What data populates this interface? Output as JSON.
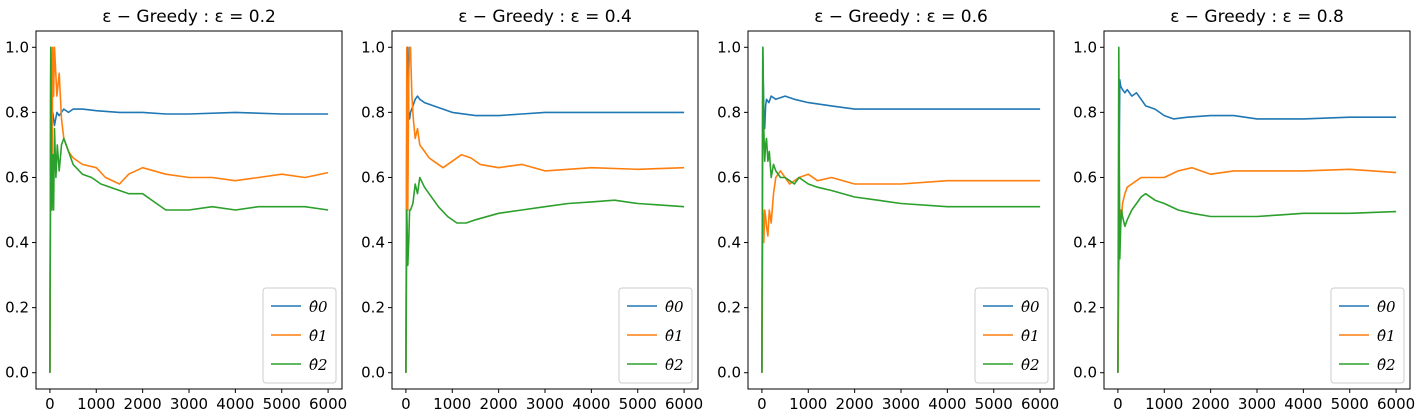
{
  "chart_data": [
    {
      "type": "line",
      "title": "ε − Greedy :  ε = 0.2",
      "xlabel": "",
      "ylabel": "",
      "xlim": [
        0,
        6000
      ],
      "ylim": [
        0.0,
        1.0
      ],
      "xticks": [
        "0",
        "1000",
        "2000",
        "3000",
        "4000",
        "5000",
        "6000"
      ],
      "yticks": [
        "0.0",
        "0.2",
        "0.4",
        "0.6",
        "0.8",
        "1.0"
      ],
      "legend_position": "lower-right",
      "series": [
        {
          "name": "θ̂0",
          "color": "#1f77b4",
          "x": [
            0,
            20,
            40,
            60,
            80,
            100,
            150,
            200,
            300,
            400,
            500,
            700,
            1000,
            1500,
            2000,
            2500,
            3000,
            4000,
            5000,
            6000
          ],
          "y": [
            0,
            1.0,
            0.75,
            0.8,
            0.78,
            0.76,
            0.8,
            0.79,
            0.81,
            0.8,
            0.81,
            0.81,
            0.805,
            0.8,
            0.8,
            0.795,
            0.795,
            0.8,
            0.795,
            0.795
          ]
        },
        {
          "name": "θ̂1",
          "color": "#ff7f0e",
          "x": [
            0,
            20,
            40,
            60,
            80,
            100,
            150,
            200,
            250,
            300,
            400,
            500,
            700,
            1000,
            1200,
            1500,
            1700,
            2000,
            2500,
            3000,
            3500,
            4000,
            4500,
            5000,
            5500,
            6000
          ],
          "y": [
            0,
            1.0,
            0.5,
            1.0,
            0.85,
            1.0,
            0.85,
            0.92,
            0.78,
            0.72,
            0.68,
            0.66,
            0.64,
            0.63,
            0.6,
            0.58,
            0.61,
            0.63,
            0.61,
            0.6,
            0.6,
            0.59,
            0.6,
            0.61,
            0.6,
            0.615
          ]
        },
        {
          "name": "θ̂2",
          "color": "#2ca02c",
          "x": [
            0,
            20,
            40,
            60,
            80,
            100,
            130,
            160,
            200,
            250,
            300,
            400,
            500,
            700,
            900,
            1100,
            1300,
            1500,
            1700,
            2000,
            2300,
            2500,
            3000,
            3500,
            4000,
            4500,
            5000,
            5500,
            6000
          ],
          "y": [
            0,
            1.0,
            0.5,
            0.67,
            0.5,
            0.75,
            0.6,
            0.7,
            0.62,
            0.7,
            0.72,
            0.68,
            0.64,
            0.61,
            0.6,
            0.58,
            0.57,
            0.56,
            0.55,
            0.55,
            0.52,
            0.5,
            0.5,
            0.51,
            0.5,
            0.51,
            0.51,
            0.51,
            0.5
          ]
        }
      ]
    },
    {
      "type": "line",
      "title": "ε − Greedy :  ε = 0.4",
      "xlabel": "",
      "ylabel": "",
      "xlim": [
        0,
        6000
      ],
      "ylim": [
        0.0,
        1.0
      ],
      "xticks": [
        "0",
        "1000",
        "2000",
        "3000",
        "4000",
        "5000",
        "6000"
      ],
      "yticks": [
        "0.0",
        "0.2",
        "0.4",
        "0.6",
        "0.8",
        "1.0"
      ],
      "legend_position": "lower-right",
      "series": [
        {
          "name": "θ̂0",
          "color": "#1f77b4",
          "x": [
            0,
            20,
            40,
            60,
            80,
            100,
            150,
            200,
            250,
            300,
            400,
            600,
            800,
            1000,
            1500,
            2000,
            2500,
            3000,
            3500,
            4000,
            5000,
            6000
          ],
          "y": [
            0,
            0.75,
            1.0,
            0.8,
            0.78,
            0.8,
            0.82,
            0.84,
            0.85,
            0.84,
            0.83,
            0.82,
            0.81,
            0.8,
            0.79,
            0.79,
            0.795,
            0.8,
            0.8,
            0.8,
            0.8,
            0.8
          ]
        },
        {
          "name": "θ̂1",
          "color": "#ff7f0e",
          "x": [
            0,
            20,
            40,
            60,
            80,
            100,
            130,
            160,
            200,
            250,
            300,
            400,
            500,
            600,
            800,
            1000,
            1200,
            1400,
            1600,
            2000,
            2500,
            3000,
            4000,
            5000,
            6000
          ],
          "y": [
            0,
            1.0,
            0.5,
            0.9,
            1.0,
            1.0,
            0.85,
            0.78,
            0.72,
            0.75,
            0.7,
            0.68,
            0.66,
            0.65,
            0.63,
            0.65,
            0.67,
            0.66,
            0.64,
            0.63,
            0.64,
            0.62,
            0.63,
            0.625,
            0.63
          ]
        },
        {
          "name": "θ̂2",
          "color": "#2ca02c",
          "x": [
            0,
            20,
            40,
            60,
            80,
            100,
            150,
            200,
            250,
            300,
            400,
            500,
            700,
            900,
            1100,
            1300,
            1500,
            2000,
            2500,
            3000,
            3500,
            4000,
            4500,
            5000,
            5500,
            6000
          ],
          "y": [
            0,
            0.5,
            0.33,
            0.4,
            0.5,
            0.5,
            0.52,
            0.58,
            0.55,
            0.6,
            0.57,
            0.55,
            0.51,
            0.48,
            0.46,
            0.46,
            0.47,
            0.49,
            0.5,
            0.51,
            0.52,
            0.525,
            0.53,
            0.52,
            0.515,
            0.51
          ]
        }
      ]
    },
    {
      "type": "line",
      "title": "ε − Greedy :  ε = 0.6",
      "xlabel": "",
      "ylabel": "",
      "xlim": [
        0,
        6000
      ],
      "ylim": [
        0.0,
        1.0
      ],
      "xticks": [
        "0",
        "1000",
        "2000",
        "3000",
        "4000",
        "5000",
        "6000"
      ],
      "yticks": [
        "0.0",
        "0.2",
        "0.4",
        "0.6",
        "0.8",
        "1.0"
      ],
      "legend_position": "lower-right",
      "series": [
        {
          "name": "θ̂0",
          "color": "#1f77b4",
          "x": [
            0,
            20,
            40,
            60,
            80,
            100,
            150,
            200,
            300,
            500,
            700,
            1000,
            1500,
            2000,
            2500,
            3000,
            4000,
            5000,
            6000
          ],
          "y": [
            0,
            1.0,
            0.8,
            0.75,
            0.82,
            0.84,
            0.83,
            0.85,
            0.84,
            0.85,
            0.84,
            0.83,
            0.82,
            0.81,
            0.81,
            0.81,
            0.81,
            0.81,
            0.81
          ]
        },
        {
          "name": "θ̂1",
          "color": "#ff7f0e",
          "x": [
            0,
            20,
            40,
            60,
            80,
            100,
            130,
            160,
            200,
            250,
            300,
            400,
            500,
            600,
            800,
            1000,
            1200,
            1500,
            2000,
            2500,
            3000,
            4000,
            5000,
            6000
          ],
          "y": [
            0,
            0.5,
            0.4,
            0.5,
            0.48,
            0.45,
            0.42,
            0.5,
            0.46,
            0.55,
            0.6,
            0.62,
            0.6,
            0.58,
            0.6,
            0.61,
            0.59,
            0.6,
            0.58,
            0.58,
            0.58,
            0.59,
            0.59,
            0.59
          ]
        },
        {
          "name": "θ̂2",
          "color": "#2ca02c",
          "x": [
            0,
            20,
            40,
            60,
            80,
            100,
            130,
            160,
            200,
            250,
            300,
            400,
            500,
            600,
            700,
            800,
            1000,
            1200,
            1500,
            2000,
            2500,
            3000,
            4000,
            5000,
            6000
          ],
          "y": [
            0,
            1.0,
            0.75,
            0.65,
            0.7,
            0.72,
            0.65,
            0.68,
            0.6,
            0.64,
            0.62,
            0.6,
            0.6,
            0.59,
            0.58,
            0.6,
            0.58,
            0.57,
            0.56,
            0.54,
            0.53,
            0.52,
            0.51,
            0.51,
            0.51
          ]
        }
      ]
    },
    {
      "type": "line",
      "title": "ε − Greedy :  ε = 0.8",
      "xlabel": "",
      "ylabel": "",
      "xlim": [
        0,
        6000
      ],
      "ylim": [
        0.0,
        1.0
      ],
      "xticks": [
        "0",
        "1000",
        "2000",
        "3000",
        "4000",
        "5000",
        "6000"
      ],
      "yticks": [
        "0.0",
        "0.2",
        "0.4",
        "0.6",
        "0.8",
        "1.0"
      ],
      "legend_position": "lower-right",
      "series": [
        {
          "name": "θ̂0",
          "color": "#1f77b4",
          "x": [
            0,
            20,
            40,
            60,
            100,
            150,
            200,
            300,
            400,
            500,
            600,
            800,
            1000,
            1200,
            1500,
            2000,
            2500,
            3000,
            4000,
            5000,
            6000
          ],
          "y": [
            0,
            0.5,
            0.9,
            0.88,
            0.87,
            0.86,
            0.87,
            0.85,
            0.86,
            0.84,
            0.82,
            0.81,
            0.79,
            0.78,
            0.785,
            0.79,
            0.79,
            0.78,
            0.78,
            0.785,
            0.785
          ]
        },
        {
          "name": "θ̂1",
          "color": "#ff7f0e",
          "x": [
            0,
            20,
            40,
            60,
            80,
            100,
            150,
            200,
            300,
            400,
            500,
            700,
            1000,
            1300,
            1600,
            2000,
            2500,
            3000,
            4000,
            5000,
            6000
          ],
          "y": [
            0,
            0.3,
            0.45,
            0.5,
            0.48,
            0.52,
            0.55,
            0.57,
            0.58,
            0.59,
            0.6,
            0.6,
            0.6,
            0.62,
            0.63,
            0.61,
            0.62,
            0.62,
            0.62,
            0.625,
            0.615
          ]
        },
        {
          "name": "θ̂2",
          "color": "#2ca02c",
          "x": [
            0,
            20,
            40,
            60,
            80,
            100,
            150,
            200,
            300,
            400,
            500,
            600,
            800,
            1000,
            1300,
            1600,
            2000,
            2500,
            3000,
            3500,
            4000,
            5000,
            6000
          ],
          "y": [
            0,
            1.0,
            0.35,
            0.45,
            0.5,
            0.48,
            0.45,
            0.47,
            0.5,
            0.52,
            0.54,
            0.55,
            0.53,
            0.52,
            0.5,
            0.49,
            0.48,
            0.48,
            0.48,
            0.485,
            0.49,
            0.49,
            0.495
          ]
        }
      ]
    }
  ]
}
